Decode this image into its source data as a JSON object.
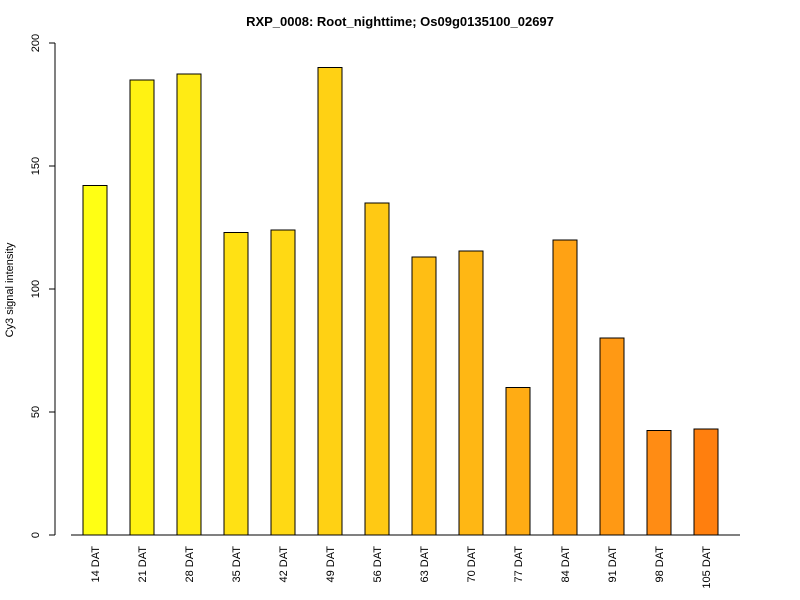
{
  "chart_data": {
    "type": "bar",
    "title": "RXP_0008: Root_nighttime; Os09g0135100_02697",
    "xlabel": "",
    "ylabel": "Cy3 signal intensity",
    "ylim": [
      0,
      200
    ],
    "yticks": [
      0,
      50,
      100,
      150,
      200
    ],
    "categories": [
      "14 DAT",
      "21 DAT",
      "28 DAT",
      "35 DAT",
      "42 DAT",
      "49 DAT",
      "56 DAT",
      "63 DAT",
      "70 DAT",
      "77 DAT",
      "84 DAT",
      "91 DAT",
      "98 DAT",
      "105 DAT"
    ],
    "values": [
      142,
      185,
      187.5,
      123,
      124,
      190,
      135,
      113,
      115.5,
      60,
      120,
      80,
      42.5,
      43
    ],
    "colors": [
      "#ffff14",
      "#fff212",
      "#ffeb14",
      "#ffe114",
      "#ffd914",
      "#ffd114",
      "#ffc914",
      "#ffbe14",
      "#ffb714",
      "#ffac14",
      "#ffa214",
      "#ff9914",
      "#ff8c14",
      "#ff7f0e"
    ],
    "grid": false,
    "legend": "none"
  }
}
